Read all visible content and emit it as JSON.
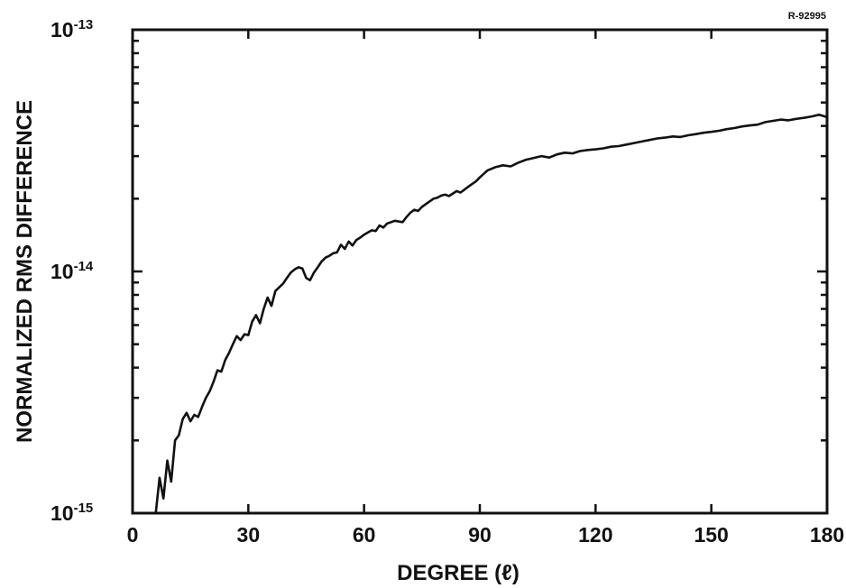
{
  "figure_id": "R-92995",
  "chart_data": {
    "type": "line",
    "xlabel": "DEGREE (ℓ)",
    "ylabel": "NORMALIZED RMS DIFFERENCE",
    "xlim": [
      0,
      180
    ],
    "ylim": [
      1e-15,
      1e-13
    ],
    "yscale": "log",
    "grid": false,
    "x_ticks": [
      "0",
      "30",
      "60",
      "90",
      "120",
      "150",
      "180"
    ],
    "y_ticks": [
      {
        "base": "10",
        "exp": "-13"
      },
      {
        "base": "10",
        "exp": "-14"
      },
      {
        "base": "10",
        "exp": "-15"
      }
    ],
    "line_color": "#111111",
    "series": [
      {
        "x": [
          6,
          7,
          8,
          9,
          10,
          11,
          12,
          13,
          14,
          15,
          16,
          17,
          18,
          19,
          20,
          21,
          22,
          23,
          24,
          25,
          26,
          27,
          28,
          29,
          30,
          31,
          32,
          33,
          34,
          35,
          36,
          37,
          38,
          39,
          40,
          41,
          42,
          43,
          44,
          45,
          46,
          47,
          48,
          49,
          50,
          51,
          52,
          53,
          54,
          55,
          56,
          57,
          58,
          59,
          60,
          61,
          62,
          63,
          64,
          65,
          66,
          67,
          68,
          69,
          70,
          71,
          72,
          73,
          74,
          75,
          76,
          77,
          78,
          79,
          80,
          81,
          82,
          83,
          84,
          85,
          86,
          87,
          88,
          89,
          90,
          92,
          94,
          96,
          98,
          100,
          102,
          104,
          106,
          108,
          110,
          112,
          114,
          116,
          118,
          120,
          122,
          124,
          126,
          128,
          130,
          132,
          134,
          136,
          138,
          140,
          142,
          144,
          146,
          148,
          150,
          152,
          154,
          156,
          158,
          160,
          162,
          164,
          166,
          168,
          170,
          172,
          174,
          176,
          178,
          180
        ],
        "values": [
          1e-15,
          1.4e-15,
          1.15e-15,
          1.65e-15,
          1.35e-15,
          2e-15,
          2.1e-15,
          2.45e-15,
          2.6e-15,
          2.4e-15,
          2.55e-15,
          2.5e-15,
          2.75e-15,
          3e-15,
          3.2e-15,
          3.5e-15,
          3.9e-15,
          3.85e-15,
          4.3e-15,
          4.6e-15,
          5e-15,
          5.4e-15,
          5.2e-15,
          5.5e-15,
          5.45e-15,
          6.2e-15,
          6.6e-15,
          6.1e-15,
          7e-15,
          7.8e-15,
          7.2e-15,
          8.3e-15,
          8.6e-15,
          8.9e-15,
          9.4e-15,
          9.9e-15,
          1.02e-14,
          1.04e-14,
          1.03e-14,
          9.4e-15,
          9.2e-15,
          9.9e-15,
          1.04e-14,
          1.1e-14,
          1.14e-14,
          1.16e-14,
          1.19e-14,
          1.2e-14,
          1.29e-14,
          1.24e-14,
          1.33e-14,
          1.28e-14,
          1.35e-14,
          1.38e-14,
          1.42e-14,
          1.45e-14,
          1.48e-14,
          1.47e-14,
          1.55e-14,
          1.52e-14,
          1.58e-14,
          1.6e-14,
          1.62e-14,
          1.61e-14,
          1.6e-14,
          1.68e-14,
          1.75e-14,
          1.8e-14,
          1.78e-14,
          1.85e-14,
          1.9e-14,
          1.95e-14,
          2e-14,
          2.02e-14,
          2.06e-14,
          2.08e-14,
          2.05e-14,
          2.1e-14,
          2.15e-14,
          2.12e-14,
          2.18e-14,
          2.24e-14,
          2.3e-14,
          2.36e-14,
          2.45e-14,
          2.62e-14,
          2.7e-14,
          2.75e-14,
          2.72e-14,
          2.82e-14,
          2.9e-14,
          2.95e-14,
          3e-14,
          2.96e-14,
          3.05e-14,
          3.1e-14,
          3.08e-14,
          3.15e-14,
          3.18e-14,
          3.2e-14,
          3.23e-14,
          3.28e-14,
          3.3e-14,
          3.35e-14,
          3.4e-14,
          3.45e-14,
          3.5e-14,
          3.55e-14,
          3.58e-14,
          3.62e-14,
          3.6e-14,
          3.66e-14,
          3.7e-14,
          3.75e-14,
          3.78e-14,
          3.82e-14,
          3.88e-14,
          3.92e-14,
          3.98e-14,
          4.02e-14,
          4.05e-14,
          4.15e-14,
          4.2e-14,
          4.25e-14,
          4.22e-14,
          4.28e-14,
          4.32e-14,
          4.38e-14,
          4.45e-14,
          4.35e-14
        ]
      }
    ]
  }
}
